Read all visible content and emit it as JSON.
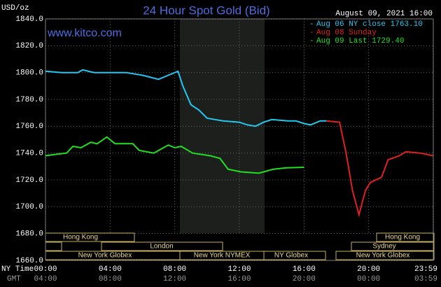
{
  "chart_data": {
    "type": "line",
    "title": "24 Hour Spot Gold (Bid)",
    "site": "www.kitco.com",
    "timestamp": "August 09, 2021 16:00",
    "y_label": "USD/oz",
    "x_label": "NY Time",
    "x2_label": "GMT",
    "ylim": [
      1660,
      1840
    ],
    "yticks": [
      {
        "value": 1660,
        "label": "1660.0"
      },
      {
        "value": 1680,
        "label": "1680.0"
      },
      {
        "value": 1700,
        "label": "1700.0"
      },
      {
        "value": 1720,
        "label": "1720.0"
      },
      {
        "value": 1740,
        "label": "1740.0"
      },
      {
        "value": 1760,
        "label": "1760.0"
      },
      {
        "value": 1780,
        "label": "1780.0"
      },
      {
        "value": 1800,
        "label": "1800.0"
      },
      {
        "value": 1820,
        "label": "1820.0"
      },
      {
        "value": 1840,
        "label": "1840.0"
      }
    ],
    "xlim": [
      0,
      24
    ],
    "xticks": [
      {
        "value": 0,
        "label": "00:00"
      },
      {
        "value": 4,
        "label": "04:00"
      },
      {
        "value": 8,
        "label": "08:00"
      },
      {
        "value": 12,
        "label": "12:00"
      },
      {
        "value": 16,
        "label": "16:00"
      },
      {
        "value": 20,
        "label": "20:00"
      },
      {
        "value": 24,
        "label": "23:59"
      }
    ],
    "x2ticks": [
      "04:00",
      "08:00",
      "12:00",
      "16:00",
      "20:00",
      "00:00",
      "03:59"
    ],
    "grid": true,
    "sessions": [
      "Hong Kong",
      "London",
      "New York Globex",
      "New York NYMEX",
      "NY Globex",
      "Hong Kong",
      "Sydney",
      "New York Globex"
    ],
    "series": [
      {
        "name": "Aug 06 NY close 1763.10",
        "color": "#22c8f0",
        "x": [
          0,
          1,
          2,
          2.3,
          3,
          4,
          5,
          6,
          7,
          7.6,
          8.2,
          8.5,
          9,
          9.5,
          10,
          10.5,
          11,
          12,
          12.5,
          13,
          13.5,
          14,
          15,
          15.5,
          16,
          16.4,
          17,
          17.4
        ],
        "values": [
          1801,
          1800,
          1800,
          1802,
          1800,
          1800,
          1800,
          1798,
          1795,
          1798,
          1801,
          1790,
          1776,
          1772,
          1766,
          1765,
          1764,
          1763,
          1761,
          1760,
          1763,
          1765,
          1764,
          1764,
          1762,
          1761,
          1764,
          1764
        ]
      },
      {
        "name": "Aug 08 Sunday",
        "color": "#e02020",
        "x": [
          17.4,
          18.2,
          18.6,
          19.0,
          19.4,
          19.8,
          20.1,
          20.8,
          21.2,
          21.9,
          22.3,
          23.2,
          23.98
        ],
        "values": [
          1764,
          1763,
          1740,
          1712,
          1694,
          1712,
          1718,
          1722,
          1735,
          1738,
          1741,
          1740,
          1738
        ]
      },
      {
        "name": "Aug 09 Last 1729.40",
        "color": "#20e020",
        "x": [
          0,
          0.6,
          1.3,
          1.7,
          2.2,
          2.8,
          3.2,
          3.8,
          4.3,
          5.4,
          5.8,
          6.7,
          7.6,
          8.0,
          8.4,
          9.1,
          10.2,
          10.8,
          11.3,
          12.1,
          13.2,
          14.1,
          14.9,
          16.0
        ],
        "values": [
          1738,
          1739,
          1740,
          1745,
          1744,
          1748,
          1747,
          1752,
          1747,
          1747,
          1742,
          1740,
          1746,
          1744,
          1745,
          1740,
          1738,
          1736,
          1728,
          1726,
          1725,
          1728,
          1729,
          1729.4
        ]
      }
    ]
  }
}
